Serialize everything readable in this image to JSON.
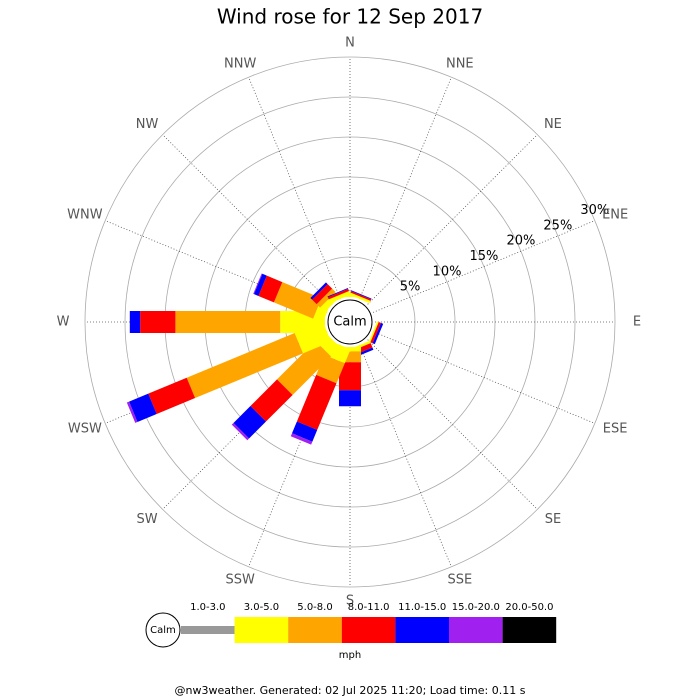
{
  "chart_data": {
    "type": "windrose",
    "title": "Wind rose for 12 Sep 2017",
    "categories": [
      "N",
      "NNE",
      "NE",
      "ENE",
      "E",
      "ESE",
      "SE",
      "SSE",
      "S",
      "SSW",
      "SW",
      "WSW",
      "W",
      "WNW",
      "NW",
      "NNW"
    ],
    "calm_label": "Calm",
    "legend_title": "mph",
    "footer": "@nw3weather. Generated: 02 Jul 2025 11:20; Load time: 0.11 s",
    "rlim": [
      0,
      30
    ],
    "rticks": [
      {
        "value": 5,
        "label": "5%"
      },
      {
        "value": 10,
        "label": "10%"
      },
      {
        "value": 15,
        "label": "15%"
      },
      {
        "value": 20,
        "label": "20%"
      },
      {
        "value": 25,
        "label": "25%"
      },
      {
        "value": 30,
        "label": "30%"
      }
    ],
    "series": [
      {
        "name": "1.0-3.0",
        "color": "#999999",
        "values": [
          0,
          0,
          0,
          0,
          0,
          0,
          0,
          0,
          0,
          0,
          0,
          0,
          0,
          0,
          0,
          0
        ]
      },
      {
        "name": "3.0-5.0",
        "color": "#ffff00",
        "values": [
          0.4,
          0.3,
          0,
          0,
          0,
          0.2,
          0,
          0.3,
          0.6,
          1.9,
          1.6,
          3.8,
          5.6,
          1.3,
          0.8,
          0.5
        ]
      },
      {
        "name": "5.0-8.0",
        "color": "#ffa500",
        "values": [
          0,
          0,
          0,
          0,
          0,
          0,
          0,
          0,
          1.3,
          2.7,
          6.8,
          14.6,
          13.1,
          5.3,
          0.6,
          0
        ]
      },
      {
        "name": "8.0-11.0",
        "color": "#ff0000",
        "values": [
          0,
          0.2,
          0,
          0,
          0,
          0.3,
          0,
          0.6,
          3.5,
          6.3,
          4.7,
          5.2,
          4.4,
          2.1,
          0.8,
          0.3
        ]
      },
      {
        "name": "11.0-15.0",
        "color": "#0000ff",
        "values": [
          0,
          0.1,
          0,
          0,
          0,
          0.3,
          0,
          0.3,
          2.0,
          1.6,
          3.0,
          2.6,
          1.3,
          0.6,
          0.3,
          0.1
        ]
      },
      {
        "name": "15.0-20.0",
        "color": "#a020f0",
        "values": [
          0,
          0,
          0,
          0,
          0,
          0,
          0,
          0,
          0,
          0.4,
          0.3,
          0.3,
          0,
          0.1,
          0,
          0
        ]
      },
      {
        "name": "20.0-50.0",
        "color": "#000000",
        "values": [
          0,
          0,
          0,
          0,
          0,
          0,
          0,
          0,
          0,
          0,
          0,
          0,
          0,
          0,
          0,
          0
        ]
      }
    ]
  }
}
